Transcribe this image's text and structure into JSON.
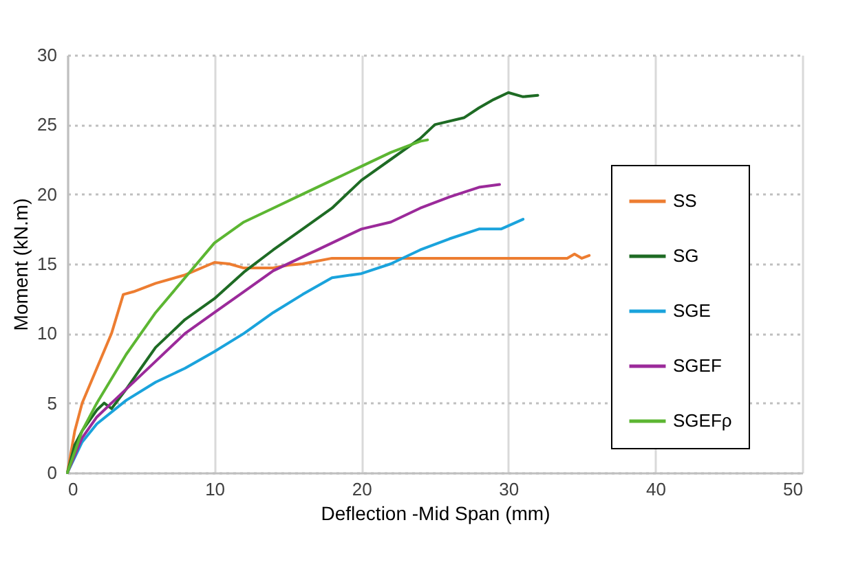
{
  "chart_data": {
    "type": "line",
    "xlabel": "Deflection -Mid Span (mm)",
    "ylabel": "Moment  (kN.m)",
    "xlim": [
      0,
      50
    ],
    "xticks": [
      0,
      10,
      20,
      30,
      40,
      50
    ],
    "ylim": [
      0,
      30
    ],
    "yticks": [
      0,
      5,
      10,
      15,
      20,
      25,
      30
    ],
    "grid": true,
    "legend": "right",
    "marker": "none",
    "line_style": "solid",
    "series": [
      {
        "name": "SS",
        "color": "#ed7d31",
        "x": [
          0,
          0.5,
          1,
          2,
          3,
          3.8,
          4.5,
          6,
          8,
          10,
          11,
          12,
          14,
          15,
          16,
          18,
          25,
          30,
          34,
          34.5,
          35,
          35.5
        ],
        "values": [
          0,
          3,
          5,
          7.5,
          10,
          12.8,
          13,
          13.6,
          14.2,
          15.1,
          15,
          14.7,
          14.7,
          14.9,
          15,
          15.4,
          15.4,
          15.4,
          15.4,
          15.7,
          15.4,
          15.6
        ]
      },
      {
        "name": "SG",
        "color": "#1e6b24",
        "x": [
          0,
          0.5,
          1,
          2,
          2.5,
          3,
          4,
          5,
          6,
          7,
          8,
          10,
          12,
          14,
          16,
          18,
          20,
          22,
          24,
          25,
          27,
          28,
          29,
          30,
          31,
          32
        ],
        "values": [
          0,
          2,
          3,
          4.5,
          5,
          4.6,
          6,
          7.5,
          9,
          10,
          11,
          12.5,
          14.4,
          16,
          17.5,
          19,
          21,
          22.5,
          24,
          25,
          25.5,
          26.2,
          26.8,
          27.3,
          27,
          27.1
        ]
      },
      {
        "name": "SGE",
        "color": "#1aa3dc",
        "x": [
          0,
          1,
          2,
          4,
          6,
          8,
          10,
          12,
          14,
          16,
          18,
          20,
          22,
          24,
          26,
          28,
          29.5,
          31
        ],
        "values": [
          0,
          2.2,
          3.5,
          5.2,
          6.5,
          7.5,
          8.7,
          10,
          11.5,
          12.8,
          14,
          14.3,
          15,
          16,
          16.8,
          17.5,
          17.5,
          18.2
        ]
      },
      {
        "name": "SGEF",
        "color": "#9b2a9a",
        "x": [
          0,
          1,
          2,
          3,
          4,
          6,
          8,
          10,
          12,
          14,
          16,
          18,
          20,
          22,
          24,
          26,
          28,
          29.4
        ],
        "values": [
          0,
          2.5,
          4,
          5,
          6,
          8,
          10,
          11.5,
          13,
          14.5,
          15.5,
          16.5,
          17.5,
          18,
          19,
          19.8,
          20.5,
          20.7
        ]
      },
      {
        "name": "SGEFρ",
        "color": "#5cb632",
        "x": [
          0,
          1,
          2,
          4,
          6,
          8,
          10,
          12,
          14,
          16,
          18,
          20,
          22,
          24,
          24.5
        ],
        "values": [
          0,
          3,
          5,
          8.5,
          11.5,
          14,
          16.5,
          18,
          19,
          20,
          21,
          22,
          23,
          23.8,
          23.9
        ]
      }
    ]
  }
}
